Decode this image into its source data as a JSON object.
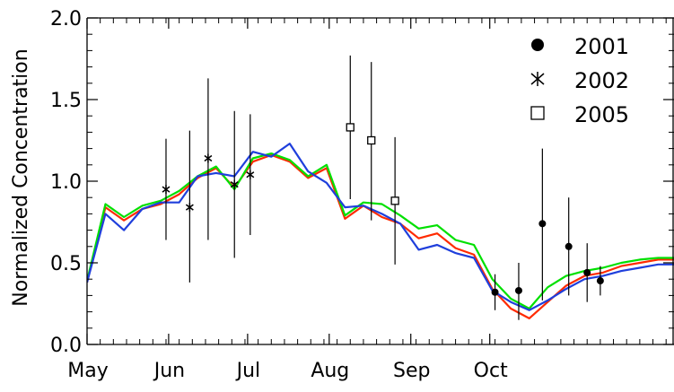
{
  "chart_data": {
    "type": "line",
    "ylabel": "Normalized Concentration",
    "xlabel": "",
    "xlim": [
      0,
      223
    ],
    "ylim": [
      0.0,
      2.0
    ],
    "x_ticks": [
      {
        "label": "May",
        "x": 0
      },
      {
        "label": "Jun",
        "x": 31
      },
      {
        "label": "Jul",
        "x": 61
      },
      {
        "label": "Aug",
        "x": 92
      },
      {
        "label": "Sep",
        "x": 123
      },
      {
        "label": "Oct",
        "x": 153
      }
    ],
    "y_ticks": [
      {
        "label": "0.0",
        "y": 0.0
      },
      {
        "label": "0.5",
        "y": 0.5
      },
      {
        "label": "1.0",
        "y": 1.0
      },
      {
        "label": "1.5",
        "y": 1.5
      },
      {
        "label": "2.0",
        "y": 2.0
      }
    ],
    "grid": false,
    "legend_position": "top-right",
    "lines": [
      {
        "color": "#ff2a00",
        "x": [
          0,
          7,
          14,
          21,
          28,
          35,
          42,
          49,
          56,
          63,
          70,
          77,
          84,
          91,
          98,
          105,
          112,
          119,
          126,
          133,
          140,
          147,
          154,
          161,
          168,
          175,
          182,
          189,
          196,
          203,
          210,
          217,
          223
        ],
        "y": [
          0.38,
          0.84,
          0.76,
          0.83,
          0.86,
          0.92,
          1.02,
          1.08,
          0.96,
          1.12,
          1.16,
          1.12,
          1.02,
          1.08,
          0.77,
          0.85,
          0.78,
          0.74,
          0.65,
          0.68,
          0.59,
          0.55,
          0.34,
          0.22,
          0.16,
          0.26,
          0.36,
          0.42,
          0.44,
          0.48,
          0.5,
          0.52,
          0.52
        ]
      },
      {
        "color": "#00e000",
        "x": [
          0,
          7,
          14,
          21,
          28,
          35,
          42,
          49,
          56,
          63,
          70,
          77,
          84,
          91,
          98,
          105,
          112,
          119,
          126,
          133,
          140,
          147,
          154,
          161,
          168,
          175,
          182,
          189,
          196,
          203,
          210,
          217,
          223
        ],
        "y": [
          0.39,
          0.86,
          0.78,
          0.85,
          0.88,
          0.94,
          1.03,
          1.09,
          0.95,
          1.14,
          1.17,
          1.13,
          1.03,
          1.1,
          0.79,
          0.87,
          0.86,
          0.79,
          0.71,
          0.73,
          0.64,
          0.61,
          0.4,
          0.28,
          0.22,
          0.35,
          0.42,
          0.45,
          0.47,
          0.5,
          0.52,
          0.53,
          0.53
        ]
      },
      {
        "color": "#1f3fdc",
        "x": [
          0,
          7,
          14,
          21,
          28,
          35,
          42,
          49,
          56,
          63,
          70,
          77,
          84,
          91,
          98,
          105,
          112,
          119,
          126,
          133,
          140,
          147,
          154,
          161,
          168,
          175,
          182,
          189,
          196,
          203,
          210,
          217,
          223
        ],
        "y": [
          0.38,
          0.8,
          0.7,
          0.83,
          0.87,
          0.87,
          1.03,
          1.05,
          1.03,
          1.18,
          1.15,
          1.23,
          1.06,
          0.99,
          0.84,
          0.85,
          0.8,
          0.74,
          0.58,
          0.61,
          0.56,
          0.53,
          0.33,
          0.26,
          0.21,
          0.27,
          0.34,
          0.4,
          0.42,
          0.45,
          0.47,
          0.49,
          0.49
        ]
      }
    ],
    "series": [
      {
        "name": "2001",
        "marker": "filled-circle",
        "points": [
          {
            "x": 155,
            "y": 0.32,
            "lo": 0.21,
            "hi": 0.43
          },
          {
            "x": 164,
            "y": 0.33,
            "lo": 0.15,
            "hi": 0.5
          },
          {
            "x": 173,
            "y": 0.74,
            "lo": 0.27,
            "hi": 1.2
          },
          {
            "x": 183,
            "y": 0.6,
            "lo": 0.3,
            "hi": 0.9
          },
          {
            "x": 190,
            "y": 0.44,
            "lo": 0.26,
            "hi": 0.62
          },
          {
            "x": 195,
            "y": 0.39,
            "lo": 0.3,
            "hi": 0.48
          }
        ]
      },
      {
        "name": "2002",
        "marker": "asterisk",
        "points": [
          {
            "x": 30,
            "y": 0.95,
            "lo": 0.64,
            "hi": 1.26
          },
          {
            "x": 39,
            "y": 0.84,
            "lo": 0.38,
            "hi": 1.31
          },
          {
            "x": 46,
            "y": 1.14,
            "lo": 0.64,
            "hi": 1.63
          },
          {
            "x": 56,
            "y": 0.98,
            "lo": 0.53,
            "hi": 1.43
          },
          {
            "x": 62,
            "y": 1.04,
            "lo": 0.67,
            "hi": 1.41
          }
        ]
      },
      {
        "name": "2005",
        "marker": "open-square",
        "points": [
          {
            "x": 100,
            "y": 1.33,
            "lo": 0.89,
            "hi": 1.77
          },
          {
            "x": 108,
            "y": 1.25,
            "lo": 0.76,
            "hi": 1.73
          },
          {
            "x": 117,
            "y": 0.88,
            "lo": 0.49,
            "hi": 1.27
          }
        ]
      }
    ]
  }
}
